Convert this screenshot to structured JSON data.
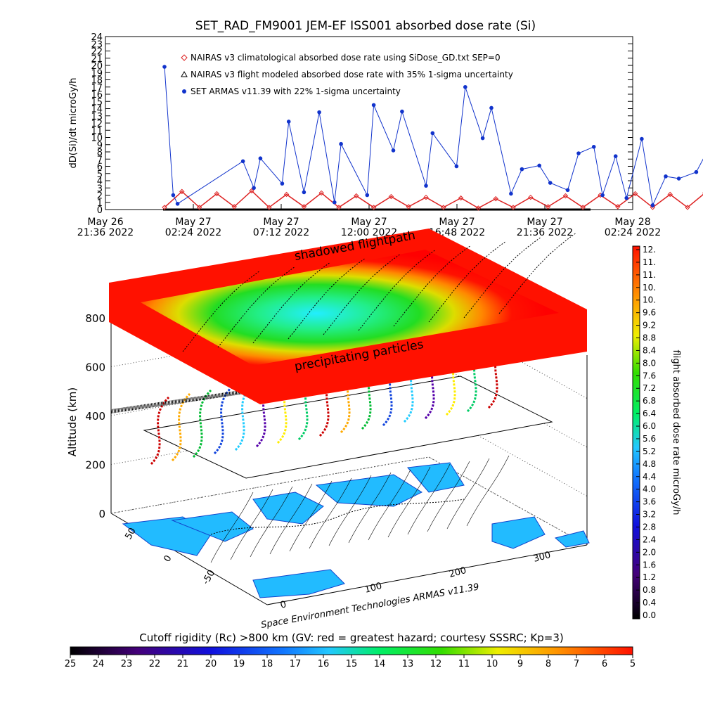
{
  "chart_data": [
    {
      "type": "line",
      "title": "SET_RAD_FM9001  JEM-EF ISS001 absorbed dose rate (Si)",
      "ylabel": "dD(Si)/dt microGy/h",
      "ylim": [
        0,
        24
      ],
      "yticks": [
        "0",
        "1",
        "2",
        "3",
        "4",
        "5",
        "6",
        "7",
        "8",
        "9",
        "10",
        "11",
        "12",
        "13",
        "14",
        "15",
        "16",
        "17",
        "18",
        "19",
        "20",
        "21",
        "22",
        "23",
        "24"
      ],
      "xticks": [
        {
          "day": "May 26",
          "time": "21:36 2022"
        },
        {
          "day": "May 27",
          "time": "02:24 2022"
        },
        {
          "day": "May 27",
          "time": "07:12 2022"
        },
        {
          "day": "May 27",
          "time": "12:00 2022"
        },
        {
          "day": "May 27",
          "time": "16:48 2022"
        },
        {
          "day": "May 27",
          "time": "21:36 2022"
        },
        {
          "day": "May 28",
          "time": "02:24 2022"
        }
      ],
      "legend": [
        {
          "label": "NAIRAS v3 climatological absorbed dose rate using SiDose_GD.txt SEP=0",
          "marker": "diamond",
          "color": "#dd2222"
        },
        {
          "label": "NAIRAS v3 flight modeled absorbed dose rate with 35% 1-sigma uncertainty",
          "marker": "triangle",
          "color": "#000000"
        },
        {
          "label": "SET ARMAS v11.39 with 22% 1-sigma uncertainty",
          "marker": "dot",
          "color": "#1133cc"
        }
      ],
      "series": [
        {
          "name": "NAIRAS v3 climatological absorbed dose rate using SiDose_GD.txt SEP=0",
          "color": "#dd2222",
          "x_hours": [
            0,
            0.8,
            1.6,
            2.4,
            3.2,
            4.0,
            4.8,
            5.6,
            6.4,
            7.2,
            8.0,
            8.8,
            9.6,
            10.4,
            11.2,
            12.0,
            12.8,
            13.6,
            14.4,
            15.2,
            16.0,
            16.8,
            17.6,
            18.4,
            19.2,
            20.0,
            20.8,
            21.6,
            22.4,
            23.2,
            24.0,
            24.8
          ],
          "y": [
            0.3,
            2.5,
            0.3,
            2.2,
            0.4,
            2.6,
            0.3,
            2.1,
            0.4,
            2.3,
            0.3,
            1.9,
            0.3,
            1.8,
            0.4,
            1.7,
            0.3,
            1.6,
            0.2,
            1.5,
            0.3,
            1.7,
            0.4,
            1.9,
            0.3,
            2.0,
            0.4,
            2.2,
            0.3,
            2.1,
            0.3,
            2.3
          ]
        },
        {
          "name": "SET ARMAS v11.39 with 22% 1-sigma uncertainty",
          "color": "#1133cc",
          "x_hours": [
            0,
            0.4,
            0.6,
            3.6,
            4.1,
            4.4,
            5.4,
            5.7,
            6.4,
            7.1,
            7.8,
            8.1,
            9.3,
            9.6,
            10.5,
            10.9,
            12.0,
            12.3,
            13.4,
            13.8,
            14.6,
            15.0,
            15.9,
            16.4,
            17.2,
            17.7,
            18.5,
            19.0,
            19.7,
            20.1,
            20.7,
            21.2,
            21.9,
            22.4,
            23.0,
            23.6,
            24.4,
            25.1,
            25.5
          ],
          "y": [
            19.8,
            2.0,
            0.8,
            6.7,
            3.0,
            7.1,
            3.6,
            12.2,
            2.4,
            13.5,
            1.0,
            9.1,
            2.0,
            14.5,
            8.2,
            13.6,
            3.3,
            10.6,
            6.0,
            17.0,
            9.9,
            14.1,
            2.2,
            5.6,
            6.1,
            3.7,
            2.7,
            7.8,
            8.7,
            2.0,
            7.4,
            1.6,
            9.8,
            0.6,
            4.6,
            4.3,
            5.2,
            9.2,
            20.2
          ]
        }
      ]
    },
    {
      "type": "3d-surface",
      "zlabel": "Altitude (km)",
      "zticks": [
        "0",
        "200",
        "400",
        "600",
        "800"
      ],
      "lat_ticks": [
        "50",
        "0",
        "-50"
      ],
      "lon_ticks": [
        "0",
        "100",
        "200",
        "300"
      ],
      "labels": [
        "shadowed flightpath",
        "precipitating particles"
      ],
      "credit": "Space Environment Technologies ARMAS v11.39"
    }
  ],
  "dose_colorbar": {
    "label": "flight absorbed dose rate microGy/h",
    "ticks": [
      "12.",
      "11.",
      "11.",
      "10.",
      "10.",
      "9.6",
      "9.2",
      "8.8",
      "8.4",
      "8.0",
      "7.6",
      "7.2",
      "6.8",
      "6.4",
      "6.0",
      "5.6",
      "5.2",
      "4.8",
      "4.4",
      "4.0",
      "3.6",
      "3.2",
      "2.8",
      "2.4",
      "2.0",
      "1.6",
      "1.2",
      "0.8",
      "0.4",
      "0.0"
    ]
  },
  "cutoff_colorbar": {
    "title": "Cutoff rigidity (Rc) >800 km (GV: red = greatest hazard; courtesy SSSRC; Kp=3)",
    "ticks": [
      "25",
      "24",
      "23",
      "22",
      "21",
      "20",
      "19",
      "18",
      "17",
      "16",
      "15",
      "14",
      "13",
      "12",
      "11",
      "10",
      "9",
      "8",
      "7",
      "6",
      "5"
    ]
  }
}
